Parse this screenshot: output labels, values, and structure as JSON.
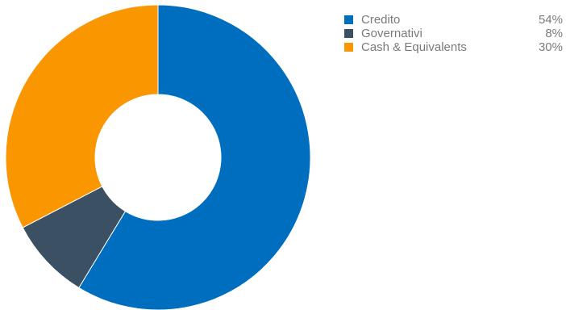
{
  "chart_data": {
    "type": "pie",
    "variant": "donut",
    "title": "",
    "legend_position": "top-right",
    "slices": [
      {
        "label": "Credito",
        "value": 54,
        "display": "54%",
        "color": "#006ebf"
      },
      {
        "label": "Governativi",
        "value": 8,
        "display": "8%",
        "color": "#3c5064"
      },
      {
        "label": "Cash & Equivalents",
        "value": 30,
        "display": "30%",
        "color": "#fa9600"
      }
    ]
  }
}
